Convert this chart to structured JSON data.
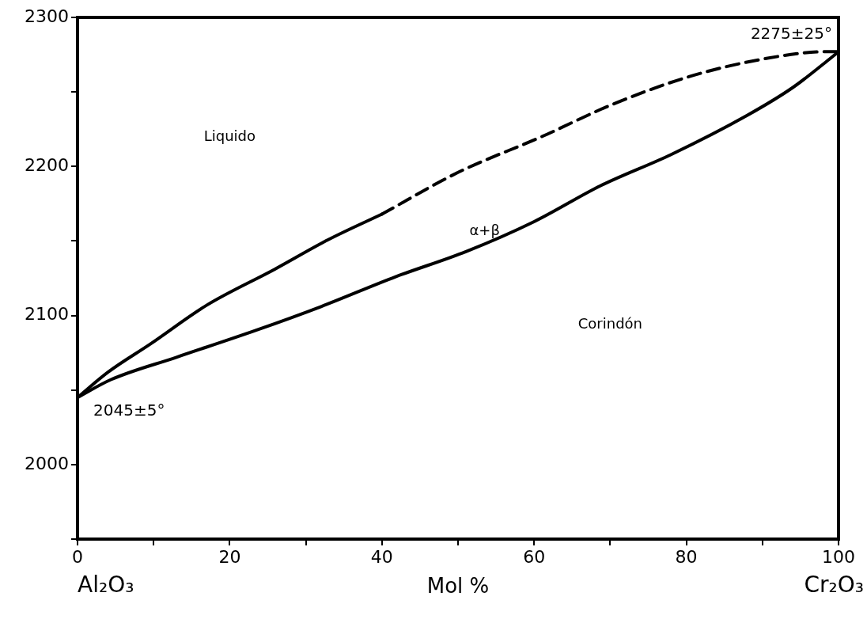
{
  "chart_data": {
    "type": "line",
    "xlabel": "Mol %",
    "xlim": [
      0,
      100
    ],
    "ylim": [
      1950,
      2300
    ],
    "xticks": [
      0,
      {
        "value": 10,
        "label": null
      },
      20,
      {
        "value": 30,
        "label": null
      },
      40,
      {
        "value": 50,
        "label": null
      },
      60,
      {
        "value": 70,
        "label": null
      },
      80,
      {
        "value": 90,
        "label": null
      },
      100
    ],
    "yticks": [
      {
        "value": 1950,
        "label": null
      },
      2000,
      {
        "value": 2050,
        "label": null
      },
      2100,
      {
        "value": 2150,
        "label": null
      },
      2200,
      {
        "value": 2250,
        "label": null
      },
      2300
    ],
    "legend": false,
    "marker": "none",
    "series": [
      {
        "color": "#000000",
        "line_style": "solid",
        "x": [
          0,
          4,
          9.6,
          17,
          25.9,
          33,
          40
        ],
        "values": [
          2045,
          2062,
          2081,
          2107,
          2131,
          2151,
          2168
        ]
      },
      {
        "color": "#000000",
        "line_style": "dashed",
        "x": [
          40,
          50,
          61,
          70,
          80.2,
          90,
          98.3,
          100
        ],
        "values": [
          2168,
          2196,
          2220,
          2241,
          2260,
          2272,
          2277,
          2277
        ]
      },
      {
        "color": "#000000",
        "line_style": "solid",
        "x": [
          0,
          4.4,
          13,
          23.4,
          32,
          41.8,
          51.1,
          60,
          68.7,
          78,
          87.9,
          94,
          98.8,
          100
        ],
        "values": [
          2045,
          2057,
          2072,
          2090,
          2106,
          2126,
          2143,
          2163,
          2187,
          2208,
          2234,
          2253,
          2272,
          2277
        ]
      }
    ],
    "annotations": [
      "Liquido",
      "α+β",
      "Corindón",
      "Al₂O₃",
      "Cr₂O₃",
      {
        "text": "2045±5°",
        "x": 0,
        "y": 2045
      },
      {
        "text": "2275±25°",
        "x": 100,
        "y": 2277
      }
    ]
  }
}
